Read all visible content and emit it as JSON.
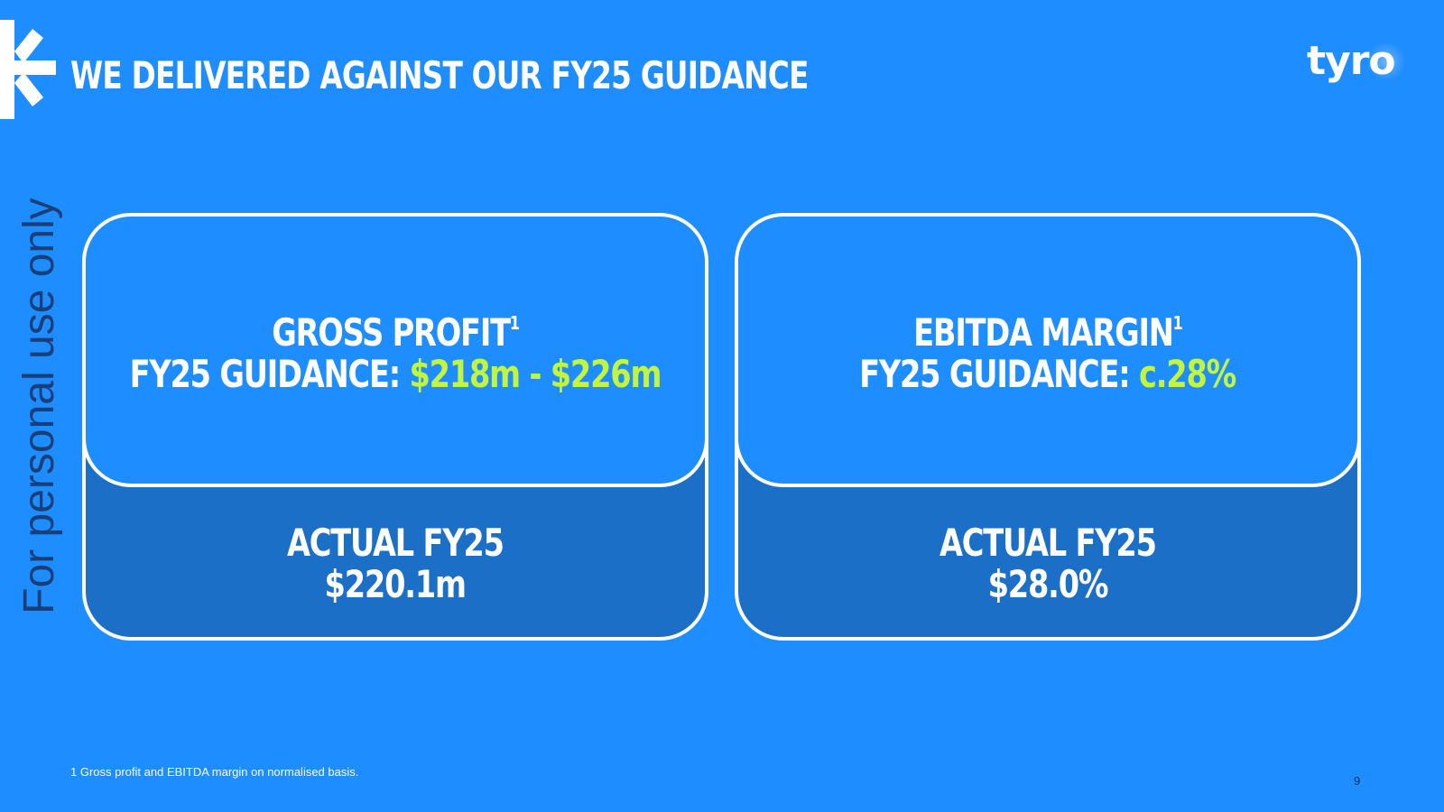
{
  "slide": {
    "title": "WE DELIVERED AGAINST OUR FY25 GUIDANCE",
    "logo_text": "tyro",
    "watermark": "For personal use only",
    "page_number": "9",
    "footnote": "1 Gross profit and EBITDA margin on normalised basis."
  },
  "cards": [
    {
      "metric": "GROSS PROFIT",
      "superscript": "1",
      "guidance_label": "FY25 GUIDANCE:",
      "guidance_value": "$218m - $226m",
      "actual_label": "ACTUAL FY25",
      "actual_value": "$220.1m"
    },
    {
      "metric": "EBITDA MARGIN",
      "superscript": "1",
      "guidance_label": "FY25 GUIDANCE:",
      "guidance_value": "c.28%",
      "actual_label": "ACTUAL FY25",
      "actual_value": "$28.0%"
    }
  ],
  "colors": {
    "background": "#1e8dff",
    "card_lower": "#1b6fc7",
    "accent": "#c3f53c",
    "watermark": "#1a3f78"
  },
  "icons": {
    "brand_mark": "tyro-arrow-mark-icon"
  }
}
